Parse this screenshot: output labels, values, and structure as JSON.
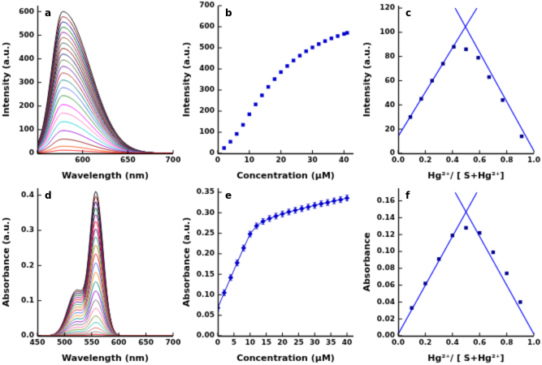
{
  "figure": {
    "background": "#ffffff"
  },
  "chart_data": [
    {
      "id": "a",
      "panel_label": "a",
      "type": "spectra",
      "title": "",
      "xlabel": "Wavelength (nm)",
      "ylabel": "Intensity (a.u.)",
      "xlim": [
        550,
        700
      ],
      "ylim": [
        0,
        625
      ],
      "xticks": [
        550,
        600,
        650,
        700
      ],
      "xtick_labels": [
        "",
        "600",
        "650",
        "700"
      ],
      "yticks": [
        0,
        100,
        200,
        300,
        400,
        500,
        600
      ],
      "ytick_labels": [
        "0",
        "100",
        "200",
        "300",
        "400",
        "500",
        "600"
      ],
      "shape": {
        "center": 578,
        "sigma_left": 12,
        "sigma_right": 30,
        "shoulder_center": 0,
        "shoulder_sigma": 1,
        "shoulder_ratio": 0
      },
      "series": [
        {
          "peak": 600,
          "color": "#000000"
        },
        {
          "peak": 578,
          "color": "#8b0000"
        },
        {
          "peak": 556,
          "color": "#00008b"
        },
        {
          "peak": 534,
          "color": "#006400"
        },
        {
          "peak": 512,
          "color": "#8b008b"
        },
        {
          "peak": 490,
          "color": "#8b4513"
        },
        {
          "peak": 467,
          "color": "#2f4f4f"
        },
        {
          "peak": 444,
          "color": "#800000"
        },
        {
          "peak": 420,
          "color": "#191970"
        },
        {
          "peak": 395,
          "color": "#556b2f"
        },
        {
          "peak": 368,
          "color": "#6a0dad"
        },
        {
          "peak": 340,
          "color": "#b22222"
        },
        {
          "peak": 310,
          "color": "#008080"
        },
        {
          "peak": 278,
          "color": "#4169e1"
        },
        {
          "peak": 244,
          "color": "#228b22"
        },
        {
          "peak": 206,
          "color": "#ff00ff"
        },
        {
          "peak": 170,
          "color": "#ff69b4"
        },
        {
          "peak": 134,
          "color": "#00ced1"
        },
        {
          "peak": 96,
          "color": "#9400d3"
        },
        {
          "peak": 60,
          "color": "#8b0000"
        },
        {
          "peak": 30,
          "color": "#ff4500"
        },
        {
          "peak": 13,
          "color": "#ff0000"
        }
      ]
    },
    {
      "id": "b",
      "panel_label": "b",
      "type": "scatter",
      "title": "",
      "xlabel": "Concentration (μM)",
      "ylabel": "Intensity (a.u.)",
      "xlim": [
        0,
        43
      ],
      "ylim": [
        0,
        700
      ],
      "xticks": [
        0,
        10,
        20,
        30,
        40
      ],
      "xtick_labels": [
        "0",
        "10",
        "20",
        "30",
        "40"
      ],
      "yticks": [
        0,
        100,
        200,
        300,
        400,
        500,
        600,
        700
      ],
      "ytick_labels": [
        "0",
        "100",
        "200",
        "300",
        "400",
        "500",
        "600",
        "700"
      ],
      "marker": "square",
      "marker_color": "#0000cd",
      "connect": false,
      "points": {
        "x": [
          2,
          4,
          6,
          8,
          10,
          12,
          14,
          16,
          18,
          20,
          22,
          24,
          26,
          28,
          30,
          32,
          34,
          36,
          38,
          40,
          41
        ],
        "y": [
          25,
          55,
          92,
          135,
          185,
          232,
          275,
          315,
          352,
          385,
          414,
          440,
          463,
          484,
          502,
          518,
          532,
          545,
          556,
          566,
          571
        ]
      }
    },
    {
      "id": "c",
      "panel_label": "c",
      "type": "jobs-plot",
      "title": "",
      "xlabel": "Hg²⁺/ [ S+Hg²⁺]",
      "ylabel": "Intensity (a.u.)",
      "xlim": [
        0,
        1.0
      ],
      "ylim": [
        0,
        122
      ],
      "xticks": [
        0.0,
        0.2,
        0.4,
        0.6,
        0.8,
        1.0
      ],
      "xtick_labels": [
        "0.0",
        "0.2",
        "0.4",
        "0.6",
        "0.8",
        "1.0"
      ],
      "yticks": [
        0,
        20,
        40,
        60,
        80,
        100,
        120
      ],
      "ytick_labels": [
        "0",
        "20",
        "40",
        "60",
        "80",
        "100",
        "120"
      ],
      "marker": "square",
      "marker_color": "#00008b",
      "line_color": "#0000ff",
      "connect": false,
      "points": {
        "x": [
          0.09,
          0.17,
          0.25,
          0.33,
          0.41,
          0.5,
          0.59,
          0.67,
          0.77,
          0.91
        ],
        "y": [
          30,
          45,
          60,
          74,
          88,
          86,
          79,
          63,
          44,
          14
        ]
      },
      "fit_lines": [
        {
          "x": [
            0.0,
            0.58
          ],
          "y": [
            14,
            120
          ]
        },
        {
          "x": [
            0.42,
            1.0
          ],
          "y": [
            120,
            2
          ]
        }
      ]
    },
    {
      "id": "d",
      "panel_label": "d",
      "type": "spectra",
      "title": "",
      "xlabel": "Wavelength (nm)",
      "ylabel": "Absorbance (a.u.)",
      "xlim": [
        450,
        700
      ],
      "ylim": [
        0,
        0.42
      ],
      "xticks": [
        450,
        500,
        550,
        600,
        650,
        700
      ],
      "xtick_labels": [
        "450",
        "500",
        "550",
        "600",
        "650",
        "700"
      ],
      "yticks": [
        0.0,
        0.1,
        0.2,
        0.3,
        0.4
      ],
      "ytick_labels": [
        "0.0",
        "0.1",
        "0.2",
        "0.3",
        "0.4"
      ],
      "shape": {
        "center": 558,
        "sigma_left": 11,
        "sigma_right": 13,
        "shoulder_center": 522,
        "shoulder_sigma": 16,
        "shoulder_ratio": 0.32
      },
      "series": [
        {
          "peak": 0.4,
          "color": "#000000"
        },
        {
          "peak": 0.386,
          "color": "#8b0000"
        },
        {
          "peak": 0.371,
          "color": "#00008b"
        },
        {
          "peak": 0.354,
          "color": "#006400"
        },
        {
          "peak": 0.336,
          "color": "#8b008b"
        },
        {
          "peak": 0.317,
          "color": "#ff0000"
        },
        {
          "peak": 0.296,
          "color": "#4b0082"
        },
        {
          "peak": 0.274,
          "color": "#2e8b57"
        },
        {
          "peak": 0.251,
          "color": "#b8860b"
        },
        {
          "peak": 0.227,
          "color": "#dc143c"
        },
        {
          "peak": 0.202,
          "color": "#4169e1"
        },
        {
          "peak": 0.176,
          "color": "#ff8c00"
        },
        {
          "peak": 0.15,
          "color": "#008b8b"
        },
        {
          "peak": 0.124,
          "color": "#9400d3"
        },
        {
          "peak": 0.099,
          "color": "#696969"
        },
        {
          "peak": 0.076,
          "color": "#ff69b4"
        },
        {
          "peak": 0.055,
          "color": "#6b8e23"
        },
        {
          "peak": 0.037,
          "color": "#20b2aa"
        },
        {
          "peak": 0.022,
          "color": "#cd5c5c"
        },
        {
          "peak": 0.011,
          "color": "#808080"
        },
        {
          "peak": 0.004,
          "color": "#ff0000"
        }
      ]
    },
    {
      "id": "e",
      "panel_label": "e",
      "type": "line-scatter",
      "title": "",
      "xlabel": "Concentration (μM)",
      "ylabel": "Absorbance (a.u.)",
      "xlim": [
        0,
        42
      ],
      "ylim": [
        0,
        0.36
      ],
      "xticks": [
        0,
        5,
        10,
        15,
        20,
        25,
        30,
        35,
        40
      ],
      "xtick_labels": [
        "0",
        "5",
        "10",
        "15",
        "20",
        "25",
        "30",
        "35",
        "40"
      ],
      "yticks": [
        0.0,
        0.05,
        0.1,
        0.15,
        0.2,
        0.25,
        0.3,
        0.35
      ],
      "ytick_labels": [
        "0.00",
        "0.05",
        "0.10",
        "0.15",
        "0.20",
        "0.25",
        "0.30",
        "0.35"
      ],
      "marker": "diamond",
      "marker_color": "#0000cd",
      "connect": true,
      "yerr": 0.007,
      "points": {
        "x": [
          0,
          2,
          4,
          6,
          8,
          10,
          12,
          14,
          16,
          18,
          20,
          22,
          24,
          26,
          28,
          30,
          32,
          34,
          36,
          38,
          40
        ],
        "y": [
          0.068,
          0.105,
          0.142,
          0.178,
          0.214,
          0.248,
          0.268,
          0.279,
          0.286,
          0.292,
          0.297,
          0.302,
          0.306,
          0.31,
          0.314,
          0.318,
          0.322,
          0.325,
          0.329,
          0.332,
          0.336
        ]
      }
    },
    {
      "id": "f",
      "panel_label": "f",
      "type": "jobs-plot",
      "title": "",
      "xlabel": "Hg²⁺/ [ S+Hg²⁺]",
      "ylabel": "Absorbance",
      "xlim": [
        0,
        1.0
      ],
      "ylim": [
        0,
        0.175
      ],
      "xticks": [
        0.0,
        0.2,
        0.4,
        0.6,
        0.8,
        1.0
      ],
      "xtick_labels": [
        "0.0",
        "0.2",
        "0.4",
        "0.6",
        "0.8",
        "1.0"
      ],
      "yticks": [
        0.0,
        0.02,
        0.04,
        0.06,
        0.08,
        0.1,
        0.12,
        0.14,
        0.16
      ],
      "ytick_labels": [
        "0.00",
        "0.02",
        "0.04",
        "0.06",
        "0.08",
        "0.10",
        "0.12",
        "0.14",
        "0.16"
      ],
      "marker": "square",
      "marker_color": "#00008b",
      "line_color": "#0000ff",
      "connect": false,
      "points": {
        "x": [
          0.1,
          0.2,
          0.3,
          0.4,
          0.5,
          0.6,
          0.7,
          0.8,
          0.9
        ],
        "y": [
          0.033,
          0.062,
          0.091,
          0.119,
          0.128,
          0.122,
          0.099,
          0.074,
          0.04
        ]
      },
      "fit_lines": [
        {
          "x": [
            0.0,
            0.58
          ],
          "y": [
            0.002,
            0.17
          ]
        },
        {
          "x": [
            0.42,
            1.0
          ],
          "y": [
            0.17,
            0.002
          ]
        }
      ]
    }
  ]
}
